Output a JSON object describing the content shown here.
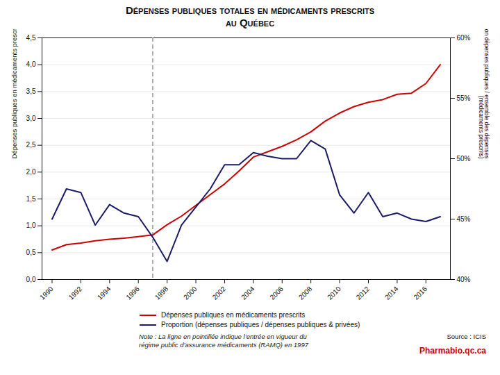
{
  "chart_data": {
    "type": "line",
    "title": "Dépenses publiques totales en médicaments prescrits\nau Québec",
    "x": [
      1990,
      1991,
      1992,
      1993,
      1994,
      1995,
      1996,
      1997,
      1998,
      1999,
      2000,
      2001,
      2002,
      2003,
      2004,
      2005,
      2006,
      2007,
      2008,
      2009,
      2010,
      2011,
      2012,
      2013,
      2014,
      2015,
      2016,
      2017
    ],
    "series": [
      {
        "name": "Dépenses publiques en médicaments prescrits",
        "color": "#cc0000",
        "values": [
          0.55,
          0.65,
          0.68,
          0.72,
          0.75,
          0.77,
          0.8,
          0.83,
          1.02,
          1.18,
          1.38,
          1.58,
          1.78,
          2.02,
          2.28,
          2.38,
          2.48,
          2.6,
          2.75,
          2.95,
          3.1,
          3.22,
          3.3,
          3.35,
          3.45,
          3.47,
          3.65,
          4.0
        ]
      },
      {
        "name": "Proportion (dépenses publiques / dépenses publiques & privées)",
        "color": "#1a1a66",
        "axis": "y2",
        "values": [
          45.0,
          47.5,
          47.2,
          44.5,
          46.2,
          45.5,
          45.2,
          43.5,
          41.5,
          44.5,
          46.0,
          47.5,
          49.5,
          49.5,
          50.5,
          50.2,
          50.0,
          50.0,
          51.5,
          50.8,
          47.0,
          45.5,
          47.2,
          45.2,
          45.5,
          45.0,
          44.8,
          45.2
        ]
      }
    ],
    "xlim": [
      1989.3,
      2017.7
    ],
    "xticks": [
      1990,
      1992,
      1994,
      1996,
      1998,
      2000,
      2002,
      2004,
      2006,
      2008,
      2010,
      2012,
      2014,
      2016
    ],
    "ylim": [
      0.0,
      4.5
    ],
    "yticks": [
      {
        "value": 0.0,
        "label": "0,0"
      },
      {
        "value": 0.5,
        "label": "0,5"
      },
      {
        "value": 1.0,
        "label": "1,0"
      },
      {
        "value": 1.5,
        "label": "1,5"
      },
      {
        "value": 2.0,
        "label": "2,0"
      },
      {
        "value": 2.5,
        "label": "2,5"
      },
      {
        "value": 3.0,
        "label": "3,0"
      },
      {
        "value": 3.5,
        "label": "3,5"
      },
      {
        "value": 4.0,
        "label": "4,0"
      },
      {
        "value": 4.5,
        "label": "4,5"
      }
    ],
    "y2lim": [
      40,
      60
    ],
    "y2ticks": [
      {
        "value": 40,
        "label": "40%"
      },
      {
        "value": 45,
        "label": "45%"
      },
      {
        "value": 50,
        "label": "50%"
      },
      {
        "value": 55,
        "label": "55%"
      },
      {
        "value": 60,
        "label": "60%"
      }
    ],
    "ylabel": "Dépenses publiques en médicaments prescrits (G$)",
    "y2label": "Proportion dépenses publiques / ensemble des dépenses\n(médicaments prescrits)",
    "vlines": [
      {
        "x": 1997,
        "color": "#999999",
        "line_style": "dashed"
      }
    ],
    "annotations": [
      {
        "text": "Note : La ligne en pointillée indique l’entrée en vigueur du\nrégime public d’assurance médicaments (RAMQ) en 1997"
      },
      {
        "text": "Source : ICIS"
      },
      {
        "text": "Pharmabio.qc.ca",
        "color": "#cc0000"
      }
    ],
    "grid": true,
    "legend": "bottom"
  }
}
